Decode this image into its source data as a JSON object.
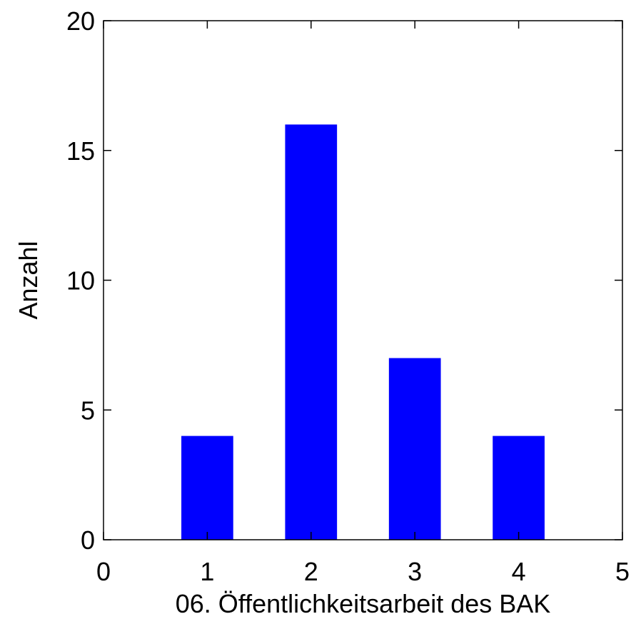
{
  "chart_data": {
    "type": "bar",
    "x": [
      1,
      2,
      3,
      4
    ],
    "values": [
      4,
      16,
      7,
      4
    ],
    "xlabel": "06. Öffentlichkeitsarbeit des BAK",
    "ylabel": "Anzahl",
    "xlim": [
      0,
      5
    ],
    "ylim": [
      0,
      20
    ],
    "xticks": [
      "0",
      "1",
      "2",
      "3",
      "4",
      "5"
    ],
    "yticks": [
      "0",
      "5",
      "10",
      "15",
      "20"
    ],
    "bar_width": 0.5,
    "bar_color": "#0000ff",
    "grid": false,
    "box": true
  }
}
